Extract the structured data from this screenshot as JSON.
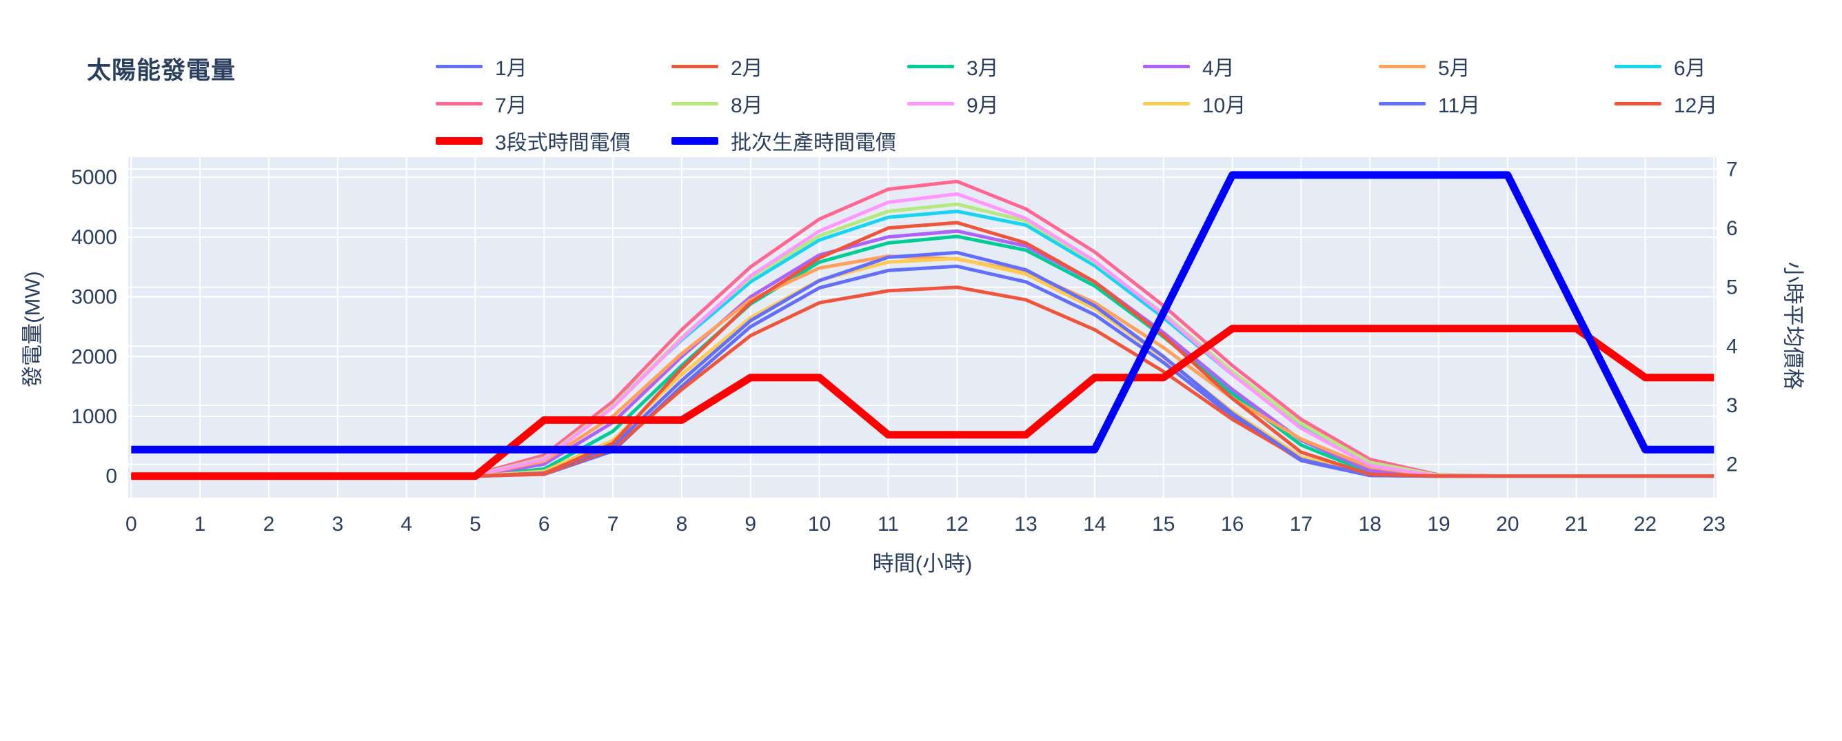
{
  "title": "太陽能發電量",
  "chart_data": {
    "type": "line",
    "title": "太陽能發電量",
    "xlabel": "時間(小時)",
    "ylabel_left": "發電量(MW)",
    "ylabel_right": "小時平均價格",
    "x": [
      0,
      1,
      2,
      3,
      4,
      5,
      6,
      7,
      8,
      9,
      10,
      11,
      12,
      13,
      14,
      15,
      16,
      17,
      18,
      19,
      20,
      21,
      22,
      23
    ],
    "x_ticks": [
      0,
      1,
      2,
      3,
      4,
      5,
      6,
      7,
      8,
      9,
      10,
      11,
      12,
      13,
      14,
      15,
      16,
      17,
      18,
      19,
      20,
      21,
      22,
      23
    ],
    "y_left_ticks": [
      0,
      1000,
      2000,
      3000,
      4000,
      5000
    ],
    "y_right_ticks": [
      2,
      3,
      4,
      5,
      6,
      7
    ],
    "ylim_left": [
      0,
      5000
    ],
    "ylim_right": [
      2,
      7
    ],
    "grid": true,
    "legend_position": "top",
    "plot_bg": "#E5ECF6",
    "grid_color": "#FFFFFF",
    "text_color": "#2a3f5f",
    "series": [
      {
        "name": "1月",
        "color": "#636EFA",
        "axis": "left",
        "width": 5,
        "values": [
          0,
          0,
          0,
          0,
          0,
          0,
          30,
          420,
          1500,
          2500,
          3150,
          3440,
          3510,
          3250,
          2700,
          1900,
          1000,
          260,
          10,
          0,
          0,
          0,
          0,
          0
        ]
      },
      {
        "name": "2月",
        "color": "#EF553B",
        "axis": "left",
        "width": 5,
        "values": [
          0,
          0,
          0,
          0,
          0,
          0,
          35,
          450,
          1450,
          2350,
          2900,
          3100,
          3160,
          2950,
          2450,
          1750,
          950,
          280,
          15,
          0,
          0,
          0,
          0,
          0
        ]
      },
      {
        "name": "3月",
        "color": "#00CC96",
        "axis": "left",
        "width": 5,
        "values": [
          0,
          0,
          0,
          0,
          0,
          0,
          120,
          750,
          1850,
          2880,
          3580,
          3900,
          4010,
          3780,
          3180,
          2330,
          1380,
          520,
          60,
          0,
          0,
          0,
          0,
          0
        ]
      },
      {
        "name": "4月",
        "color": "#AB63FA",
        "axis": "left",
        "width": 5,
        "values": [
          0,
          0,
          0,
          0,
          0,
          10,
          200,
          900,
          2000,
          3000,
          3700,
          4000,
          4100,
          3850,
          3250,
          2400,
          1450,
          600,
          90,
          0,
          0,
          0,
          0,
          0
        ]
      },
      {
        "name": "5月",
        "color": "#FFA15A",
        "axis": "left",
        "width": 5,
        "values": [
          0,
          0,
          0,
          0,
          0,
          15,
          250,
          1000,
          2050,
          2950,
          3480,
          3680,
          3630,
          3420,
          2900,
          2150,
          1300,
          620,
          150,
          0,
          0,
          0,
          0,
          0
        ]
      },
      {
        "name": "6月",
        "color": "#19D3F3",
        "axis": "left",
        "width": 5,
        "values": [
          0,
          0,
          0,
          0,
          0,
          25,
          320,
          1200,
          2280,
          3250,
          3950,
          4330,
          4430,
          4200,
          3520,
          2650,
          1700,
          850,
          220,
          10,
          0,
          0,
          0,
          0
        ]
      },
      {
        "name": "7月",
        "color": "#FF6692",
        "axis": "left",
        "width": 5,
        "values": [
          0,
          0,
          0,
          0,
          0,
          30,
          350,
          1250,
          2450,
          3500,
          4300,
          4800,
          4930,
          4470,
          3750,
          2850,
          1850,
          950,
          280,
          20,
          0,
          0,
          0,
          0
        ]
      },
      {
        "name": "8月",
        "color": "#B6E880",
        "axis": "left",
        "width": 5,
        "values": [
          0,
          0,
          0,
          0,
          0,
          20,
          300,
          1180,
          2320,
          3320,
          4020,
          4430,
          4550,
          4270,
          3580,
          2720,
          1750,
          880,
          230,
          10,
          0,
          0,
          0,
          0
        ]
      },
      {
        "name": "9月",
        "color": "#FF97FF",
        "axis": "left",
        "width": 5,
        "values": [
          0,
          0,
          0,
          0,
          0,
          15,
          280,
          1150,
          2300,
          3350,
          4100,
          4580,
          4720,
          4310,
          3600,
          2700,
          1700,
          800,
          180,
          0,
          0,
          0,
          0,
          0
        ]
      },
      {
        "name": "10月",
        "color": "#FECB52",
        "axis": "left",
        "width": 5,
        "values": [
          0,
          0,
          0,
          0,
          0,
          0,
          80,
          600,
          1700,
          2650,
          3280,
          3580,
          3640,
          3380,
          2800,
          1980,
          1080,
          320,
          20,
          0,
          0,
          0,
          0,
          0
        ]
      },
      {
        "name": "11月",
        "color": "#636EFA",
        "axis": "left",
        "width": 5,
        "values": [
          0,
          0,
          0,
          0,
          0,
          0,
          50,
          500,
          1600,
          2600,
          3270,
          3660,
          3740,
          3450,
          2850,
          2000,
          1050,
          280,
          10,
          0,
          0,
          0,
          0,
          0
        ]
      },
      {
        "name": "12月",
        "color": "#EF553B",
        "axis": "left",
        "width": 5,
        "values": [
          0,
          0,
          0,
          0,
          0,
          0,
          40,
          550,
          1800,
          2900,
          3650,
          4150,
          4240,
          3900,
          3250,
          2350,
          1300,
          400,
          30,
          0,
          0,
          0,
          0,
          0
        ]
      },
      {
        "name": "3段式時間電價",
        "color": "#FF0000",
        "axis": "right",
        "width": 11,
        "values": [
          1.8,
          1.8,
          1.8,
          1.8,
          1.8,
          1.8,
          2.75,
          2.75,
          2.75,
          3.47,
          3.47,
          2.5,
          2.5,
          2.5,
          3.47,
          3.47,
          4.3,
          4.3,
          4.3,
          4.3,
          4.3,
          4.3,
          3.47,
          3.47
        ]
      },
      {
        "name": "批次生產時間電價",
        "color": "#0000FF",
        "axis": "right",
        "width": 11,
        "values": [
          2.25,
          2.25,
          2.25,
          2.25,
          2.25,
          2.25,
          2.25,
          2.25,
          2.25,
          2.25,
          2.25,
          2.25,
          2.25,
          2.25,
          2.25,
          4.57,
          6.9,
          6.9,
          6.9,
          6.9,
          6.9,
          4.57,
          2.25,
          2.25
        ]
      }
    ]
  }
}
